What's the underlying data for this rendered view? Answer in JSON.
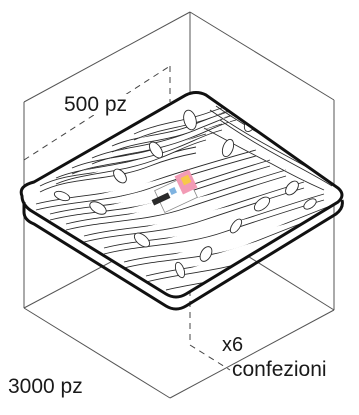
{
  "labels": {
    "top_quantity": "500 pz",
    "bottom_quantity": "3000 pz",
    "multiplier": "x6",
    "packs": "confezioni"
  }
}
